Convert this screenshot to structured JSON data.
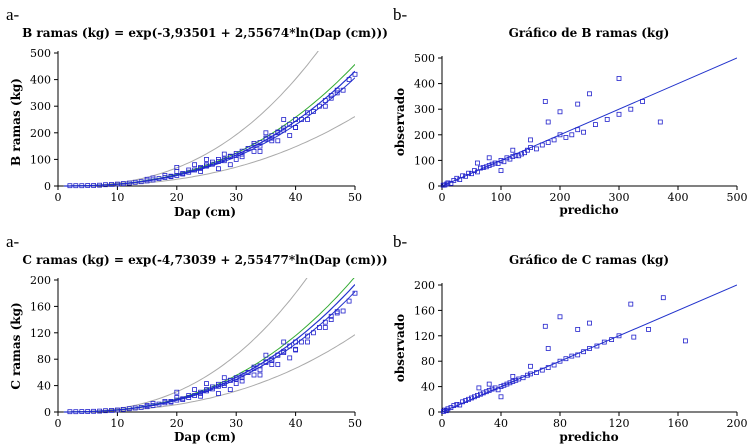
{
  "charts": [
    {
      "tag": "a-",
      "chart_data": {
        "type": "scatter",
        "title": "B ramas (kg) = exp(-3,93501 + 2,55674*ln(Dap (cm)))",
        "xlabel": "Dap (cm)",
        "ylabel": "B ramas (kg)",
        "xlim": [
          0,
          50
        ],
        "ylim": [
          0,
          500
        ],
        "xticks": [
          "0",
          "10",
          "20",
          "30",
          "40",
          "50"
        ],
        "yticks": [
          "0",
          "100",
          "200",
          "300",
          "400",
          "500"
        ],
        "model": {
          "a": -3.93501,
          "b": 2.55674
        },
        "conf_factor": 1.06,
        "pred_factor": 1.65,
        "series": [
          {
            "name": "observaciones",
            "color": "#2222cc",
            "x": [
              2,
              3,
              4,
              5,
              6,
              7,
              8,
              9,
              10,
              11,
              12,
              13,
              14,
              15,
              16,
              17,
              18,
              19,
              20,
              21,
              22,
              23,
              24,
              25,
              26,
              27,
              28,
              29,
              30,
              31,
              32,
              33,
              34,
              35,
              36,
              37,
              38,
              39,
              40,
              42,
              45,
              47,
              49,
              15,
              18,
              20,
              22,
              24,
              25,
              26,
              27,
              28,
              29,
              30,
              31,
              32,
              33,
              34,
              35,
              36,
              37,
              38,
              40,
              41,
              43,
              45,
              46,
              48,
              20,
              23,
              25,
              28,
              30,
              33,
              35,
              36,
              38,
              40,
              44,
              47,
              50,
              16,
              19,
              21,
              24,
              27,
              29,
              31,
              34,
              37,
              39,
              42,
              46
            ],
            "y": [
              1,
              1,
              1,
              2,
              2,
              3,
              5,
              6,
              7,
              9,
              11,
              14,
              16,
              19,
              23,
              28,
              32,
              37,
              40,
              47,
              52,
              60,
              66,
              75,
              82,
              92,
              101,
              112,
              122,
              131,
              141,
              153,
              163,
              176,
              189,
              203,
              218,
              232,
              250,
              275,
              321,
              360,
              400,
              25,
              40,
              55,
              60,
              70,
              80,
              90,
              100,
              95,
              110,
              115,
              120,
              140,
              160,
              150,
              180,
              170,
              200,
              210,
              220,
              250,
              280,
              300,
              340,
              360,
              70,
              80,
              100,
              120,
              100,
              130,
              200,
              180,
              250,
              220,
              300,
              350,
              420,
              30,
              35,
              45,
              55,
              65,
              80,
              110,
              130,
              170,
              190,
              250,
              330
            ]
          },
          {
            "name": "fitted",
            "color": "#2233cc"
          },
          {
            "name": "confidence",
            "color": "#33aa33"
          },
          {
            "name": "prediction",
            "color": "#aaaaaa"
          }
        ]
      }
    },
    {
      "tag": "b-",
      "chart_data": {
        "type": "scatter",
        "title": "Gráfico de B ramas (kg)",
        "xlabel": "predicho",
        "ylabel": "observado",
        "xlim": [
          0,
          500
        ],
        "ylim": [
          0,
          500
        ],
        "xticks": [
          "0",
          "100",
          "200",
          "300",
          "400",
          "500"
        ],
        "yticks": [
          "0",
          "100",
          "200",
          "300",
          "400",
          "500"
        ],
        "series": [
          {
            "name": "observaciones",
            "color": "#2222cc",
            "x": [
              2,
              5,
              8,
              10,
              15,
              20,
              25,
              30,
              35,
              40,
              45,
              50,
              55,
              60,
              65,
              70,
              75,
              80,
              85,
              90,
              95,
              100,
              105,
              110,
              115,
              120,
              125,
              130,
              135,
              140,
              145,
              150,
              160,
              170,
              180,
              190,
              200,
              210,
              220,
              230,
              240,
              260,
              280,
              300,
              320,
              340,
              370,
              60,
              80,
              100,
              120,
              150,
              175,
              180,
              200,
              230,
              250,
              300
            ],
            "y": [
              3,
              4,
              8,
              12,
              10,
              22,
              30,
              25,
              40,
              38,
              50,
              48,
              60,
              55,
              70,
              72,
              75,
              80,
              85,
              90,
              88,
              100,
              95,
              110,
              105,
              115,
              120,
              118,
              125,
              130,
              140,
              150,
              145,
              160,
              170,
              180,
              200,
              190,
              200,
              220,
              210,
              240,
              260,
              280,
              300,
              330,
              250,
              90,
              110,
              60,
              140,
              180,
              330,
              250,
              290,
              320,
              360,
              420
            ]
          },
          {
            "name": "1:1",
            "color": "#2233cc"
          }
        ]
      }
    },
    {
      "tag": "a-",
      "chart_data": {
        "type": "scatter",
        "title": "C ramas (kg) = exp(-4,73039 + 2,55477*ln(Dap (cm)))",
        "xlabel": "Dap (cm)",
        "ylabel": "C ramas (kg)",
        "xlim": [
          0,
          50
        ],
        "ylim": [
          0,
          200
        ],
        "xticks": [
          "0",
          "10",
          "20",
          "30",
          "40",
          "50"
        ],
        "yticks": [
          "0",
          "40",
          "80",
          "120",
          "160",
          "200"
        ],
        "model": {
          "a": -4.73039,
          "b": 2.55477
        },
        "conf_factor": 1.06,
        "pred_factor": 1.65,
        "series": [
          {
            "name": "observaciones",
            "color": "#2222cc",
            "x": [
              2,
              3,
              4,
              5,
              6,
              7,
              8,
              9,
              10,
              11,
              12,
              13,
              14,
              15,
              16,
              17,
              18,
              19,
              20,
              21,
              22,
              23,
              24,
              25,
              26,
              27,
              28,
              29,
              30,
              31,
              32,
              33,
              34,
              35,
              36,
              37,
              38,
              39,
              40,
              42,
              45,
              47,
              49,
              15,
              18,
              20,
              22,
              24,
              25,
              26,
              27,
              28,
              29,
              30,
              31,
              32,
              33,
              34,
              35,
              36,
              37,
              38,
              40,
              41,
              43,
              45,
              46,
              48,
              20,
              23,
              25,
              28,
              30,
              33,
              35,
              36,
              38,
              40,
              44,
              47,
              50,
              16,
              19,
              21,
              24,
              27,
              29,
              31,
              34,
              37,
              39,
              42,
              46
            ],
            "y": [
              0.4,
              0.5,
              0.6,
              0.8,
              1,
              1.4,
              2,
              2.5,
              3,
              4,
              5,
              6,
              7,
              8,
              10,
              12,
              14,
              16,
              18,
              20,
              22,
              25,
              28,
              32,
              35,
              39,
              43,
              48,
              52,
              56,
              60,
              66,
              70,
              75,
              80,
              86,
              92,
              100,
              106,
              115,
              136,
              152,
              168,
              10,
              16,
              22,
              25,
              30,
              34,
              38,
              42,
              40,
              48,
              50,
              52,
              60,
              68,
              64,
              76,
              72,
              86,
              90,
              94,
              106,
              120,
              128,
              145,
              153,
              30,
              34,
              43,
              52,
              43,
              56,
              86,
              78,
              106,
              95,
              128,
              150,
              180,
              13,
              15,
              19,
              24,
              28,
              34,
              47,
              56,
              72,
              82,
              106,
              140
            ]
          },
          {
            "name": "fitted",
            "color": "#2233cc"
          },
          {
            "name": "confidence",
            "color": "#33aa33"
          },
          {
            "name": "prediction",
            "color": "#aaaaaa"
          }
        ]
      }
    },
    {
      "tag": "b-",
      "chart_data": {
        "type": "scatter",
        "title": "Gráfico de C ramas (kg)",
        "xlabel": "predicho",
        "ylabel": "observado",
        "xlim": [
          0,
          200
        ],
        "ylim": [
          0,
          200
        ],
        "xticks": [
          "0",
          "40",
          "80",
          "120",
          "160",
          "200"
        ],
        "yticks": [
          "0",
          "40",
          "80",
          "120",
          "160",
          "200"
        ],
        "series": [
          {
            "name": "observaciones",
            "color": "#2222cc",
            "x": [
              1,
              2,
              3,
              4,
              6,
              8,
              10,
              12,
              14,
              16,
              18,
              20,
              22,
              24,
              26,
              28,
              30,
              32,
              34,
              36,
              38,
              40,
              42,
              44,
              46,
              48,
              50,
              52,
              55,
              58,
              60,
              64,
              68,
              72,
              76,
              80,
              84,
              88,
              92,
              96,
              100,
              105,
              110,
              115,
              120,
              130,
              140,
              150,
              165,
              25,
              32,
              40,
              48,
              60,
              70,
              72,
              80,
              92,
              100,
              128
            ],
            "y": [
              1,
              3,
              2,
              5,
              7,
              10,
              12,
              11,
              16,
              18,
              20,
              22,
              24,
              26,
              28,
              30,
              32,
              34,
              36,
              38,
              35,
              40,
              42,
              44,
              46,
              48,
              50,
              52,
              54,
              58,
              60,
              62,
              66,
              70,
              74,
              80,
              84,
              88,
              90,
              95,
              100,
              104,
              110,
              114,
              120,
              118,
              130,
              180,
              112,
              38,
              44,
              24,
              56,
              72,
              135,
              100,
              150,
              130,
              140,
              170
            ]
          },
          {
            "name": "1:1",
            "color": "#2233cc"
          }
        ]
      }
    }
  ]
}
